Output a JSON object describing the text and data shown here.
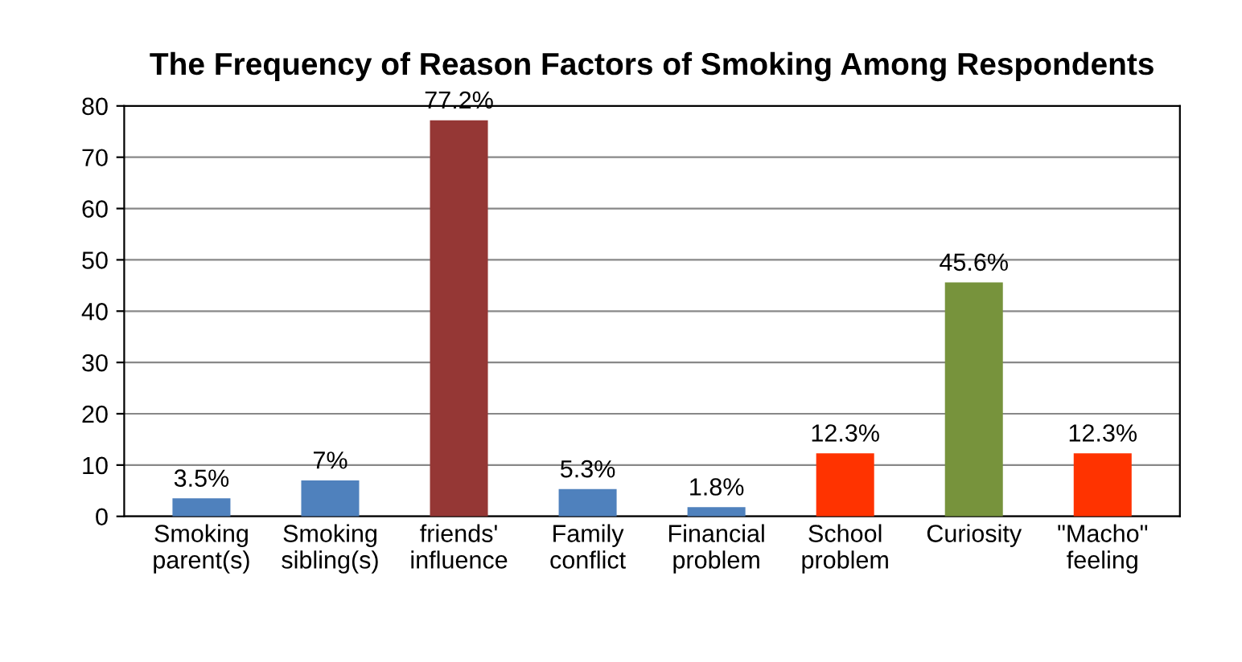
{
  "chart_data": {
    "type": "bar",
    "title": "The Frequency of Reason Factors of Smoking Among Respondents",
    "categories": [
      "Smoking\nparent(s)",
      "Smoking\nsibling(s)",
      "friends'\ninfluence",
      "Family\nconflict",
      "Financial\nproblem",
      "School\nproblem",
      "Curiosity",
      "\"Macho\"\nfeeling"
    ],
    "values": [
      3.5,
      7,
      77.2,
      5.3,
      1.8,
      12.3,
      45.6,
      12.3
    ],
    "colors": [
      "#4f81bd",
      "#4f81bd",
      "#953735",
      "#4f81bd",
      "#4f81bd",
      "#ff3300",
      "#77933c",
      "#ff3300"
    ],
    "value_labels": [
      "3.5%",
      "7%",
      "77.2%",
      "5.3%",
      "1.8%",
      "12.3%",
      "45.6%",
      "12.3%"
    ],
    "ylim": [
      0,
      80
    ],
    "yticks": [
      0,
      10,
      20,
      30,
      40,
      50,
      60,
      70,
      80
    ],
    "grid": "y"
  }
}
